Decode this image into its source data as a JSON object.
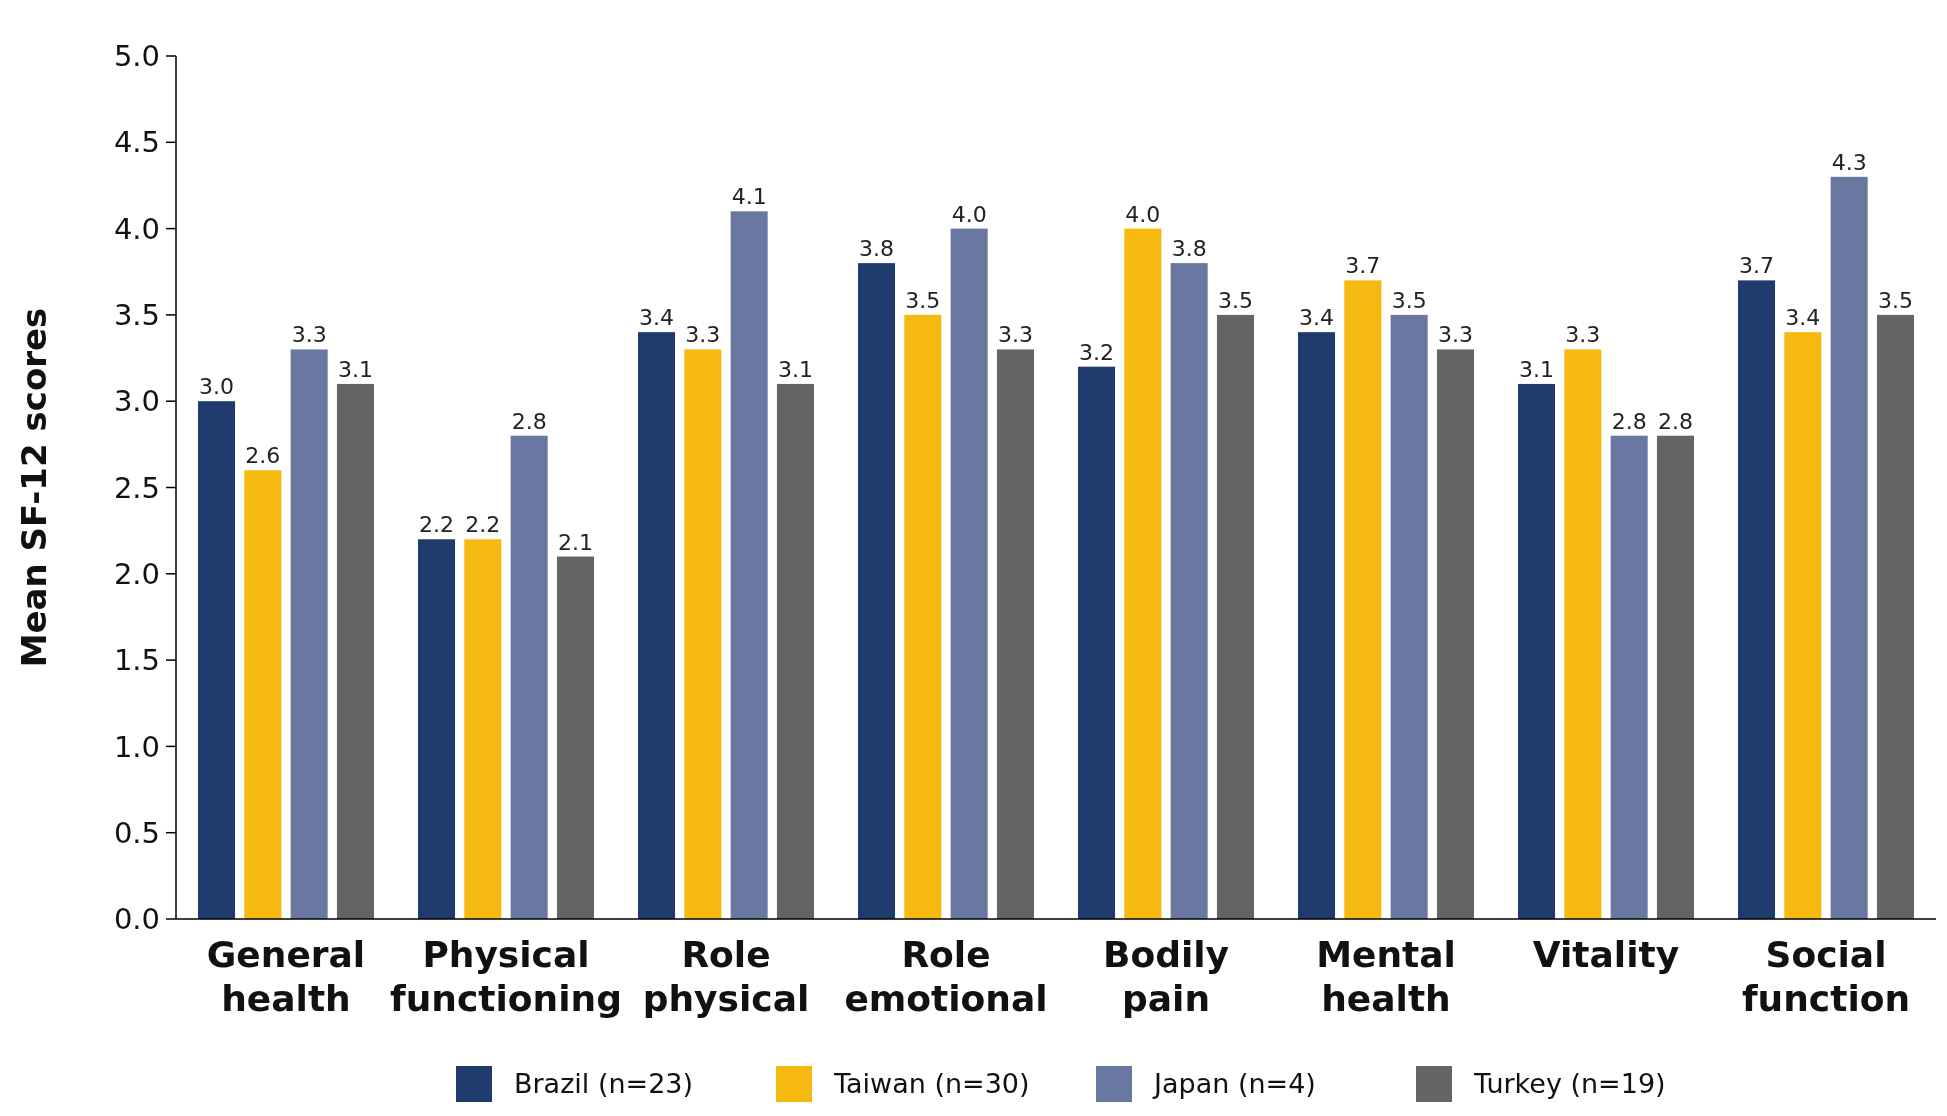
{
  "chart_data": {
    "type": "bar",
    "ylabel": "Mean SF-12 scores",
    "categories": [
      "General health",
      "Physical functioning",
      "Role physical",
      "Role emotional",
      "Bodily pain",
      "Mental health",
      "Vitality",
      "Social function"
    ],
    "series": [
      {
        "name": "Brazil (n=23)",
        "color": "#1f3b6e",
        "values": [
          3.0,
          2.2,
          3.4,
          3.8,
          3.2,
          3.4,
          3.1,
          3.7
        ],
        "value_labels": [
          "3.0",
          "2.2",
          "3.4",
          "3.8",
          "3.2",
          "3.4",
          "3.1",
          "3.7"
        ]
      },
      {
        "name": "Taiwan (n=30)",
        "color": "#f5b90f",
        "values": [
          2.6,
          2.2,
          3.3,
          3.5,
          4.0,
          3.7,
          3.3,
          3.4
        ],
        "value_labels": [
          "2.6",
          "2.2",
          "3.3",
          "3.5",
          "4.0",
          "3.7",
          "3.3",
          "3.4"
        ]
      },
      {
        "name": "Japan (n=4)",
        "color": "#6878a0",
        "values": [
          3.3,
          2.8,
          4.1,
          4.0,
          3.8,
          3.5,
          2.8,
          4.3
        ],
        "value_labels": [
          "3.3",
          "2.8",
          "4.1",
          "4.0",
          "3.8",
          "3.5",
          "2.8",
          "4.3"
        ]
      },
      {
        "name": "Turkey (n=19)",
        "color": "#646464",
        "values": [
          3.1,
          2.1,
          3.1,
          3.3,
          3.5,
          3.3,
          2.8,
          3.5
        ],
        "value_labels": [
          "3.1",
          "2.1",
          "3.1",
          "3.3",
          "3.5",
          "3.3",
          "2.8",
          "3.5"
        ]
      }
    ],
    "ylim": [
      0,
      5
    ],
    "yticks": [
      {
        "value": 0,
        "label": "0.0"
      },
      {
        "value": 0.5,
        "label": "0.5"
      },
      {
        "value": 1,
        "label": "1.0"
      },
      {
        "value": 1.5,
        "label": "1.5"
      },
      {
        "value": 2,
        "label": "2.0"
      },
      {
        "value": 2.5,
        "label": "2.5"
      },
      {
        "value": 3,
        "label": "3.0"
      },
      {
        "value": 3.5,
        "label": "3.5"
      },
      {
        "value": 4,
        "label": "4.0"
      },
      {
        "value": 4.5,
        "label": "4.5"
      },
      {
        "value": 5,
        "label": "5.0"
      }
    ],
    "grid": false,
    "legend": "bottom"
  }
}
